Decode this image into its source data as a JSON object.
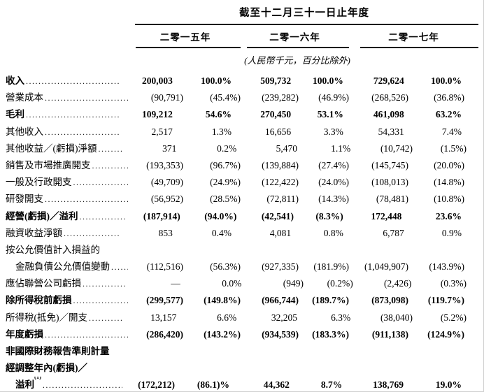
{
  "table": {
    "period_title": "截至十二月三十一日止年度",
    "unit_note": "(人民幣千元，百分比除外)",
    "years": [
      "二零一五年",
      "二零一六年",
      "二零一七年"
    ],
    "rows": [
      {
        "label": "收入",
        "bold": true,
        "dots": true,
        "values": [
          "200,003",
          "100.0%",
          "509,732",
          "100.0%",
          "729,624",
          "100.0%"
        ]
      },
      {
        "label": "營業成本",
        "bold": false,
        "dots": true,
        "values": [
          "(90,791)",
          "(45.4%)",
          "(239,282)",
          "(46.9%)",
          "(268,526)",
          "(36.8%)"
        ]
      },
      {
        "label": "毛利",
        "bold": true,
        "dots": true,
        "values": [
          "109,212",
          "54.6%",
          "270,450",
          "53.1%",
          "461,098",
          "63.2%"
        ]
      },
      {
        "label": "其他收入",
        "bold": false,
        "dots": true,
        "values": [
          "2,517",
          "1.3%",
          "16,656",
          "3.3%",
          "54,331",
          "7.4%"
        ]
      },
      {
        "label": "其他收益／(虧損)淨額",
        "bold": false,
        "dots": true,
        "values": [
          "371",
          "0.2%",
          "5,470",
          "1.1%",
          "(10,742)",
          "(1.5%)"
        ]
      },
      {
        "label": "銷售及市場推廣開支",
        "bold": false,
        "dots": true,
        "values": [
          "(193,353)",
          "(96.7%)",
          "(139,884)",
          "(27.4%)",
          "(145,745)",
          "(20.0%)"
        ]
      },
      {
        "label": "一般及行政開支",
        "bold": false,
        "dots": true,
        "values": [
          "(49,709)",
          "(24.9%)",
          "(122,422)",
          "(24.0%)",
          "(108,013)",
          "(14.8%)"
        ]
      },
      {
        "label": "研發開支",
        "bold": false,
        "dots": true,
        "values": [
          "(56,952)",
          "(28.5%)",
          "(72,811)",
          "(14.3%)",
          "(78,481)",
          "(10.8%)"
        ]
      },
      {
        "label": "經營(虧損)／溢利",
        "bold": true,
        "dots": true,
        "values": [
          "(187,914)",
          "(94.0%)",
          "(42,541)",
          "(8.3%)",
          "172,448",
          "23.6%"
        ]
      },
      {
        "label": "融資收益淨額",
        "bold": false,
        "dots": true,
        "values": [
          "853",
          "0.4%",
          "4,081",
          "0.8%",
          "6,787",
          "0.9%"
        ]
      },
      {
        "label": "按公允價值計入損益的",
        "bold": false,
        "dots": false,
        "values": null
      },
      {
        "label": "金融負債公允價值變動",
        "bold": false,
        "indent": true,
        "dots": true,
        "values": [
          "(112,516)",
          "(56.3%)",
          "(927,335)",
          "(181.9%)",
          "(1,049,907)",
          "(143.9%)"
        ]
      },
      {
        "label": "應佔聯營公司虧損",
        "bold": false,
        "dots": true,
        "values": [
          "—",
          "0.0%",
          "(949)",
          "(0.2%)",
          "(2,426)",
          "(0.3%)"
        ]
      },
      {
        "label": "除所得稅前虧損",
        "bold": true,
        "dots": true,
        "values": [
          "(299,577)",
          "(149.8%)",
          "(966,744)",
          "(189.7%)",
          "(873,098)",
          "(119.7%)"
        ]
      },
      {
        "label": "所得稅(抵免)／開支",
        "bold": false,
        "dots": true,
        "values": [
          "13,157",
          "6.6%",
          "32,205",
          "6.3%",
          "(38,040)",
          "(5.2%)"
        ]
      },
      {
        "label": "年度虧損",
        "bold": true,
        "dots": true,
        "values": [
          "(286,420)",
          "(143.2%)",
          "(934,539)",
          "(183.3%)",
          "(911,138)",
          "(124.9%)"
        ]
      },
      {
        "label": "非國際財務報告準則計量",
        "bold": true,
        "dots": false,
        "values": null
      },
      {
        "label": "經調整年內(虧損)／",
        "bold": true,
        "dots": false,
        "values": null
      },
      {
        "label": "溢利",
        "sup": "(1)",
        "bold": true,
        "indent": true,
        "dots": true,
        "final": true,
        "values": [
          "(172,212)",
          "(86.1)%",
          "44,362",
          "8.7%",
          "138,769",
          "19.0%"
        ]
      }
    ]
  }
}
